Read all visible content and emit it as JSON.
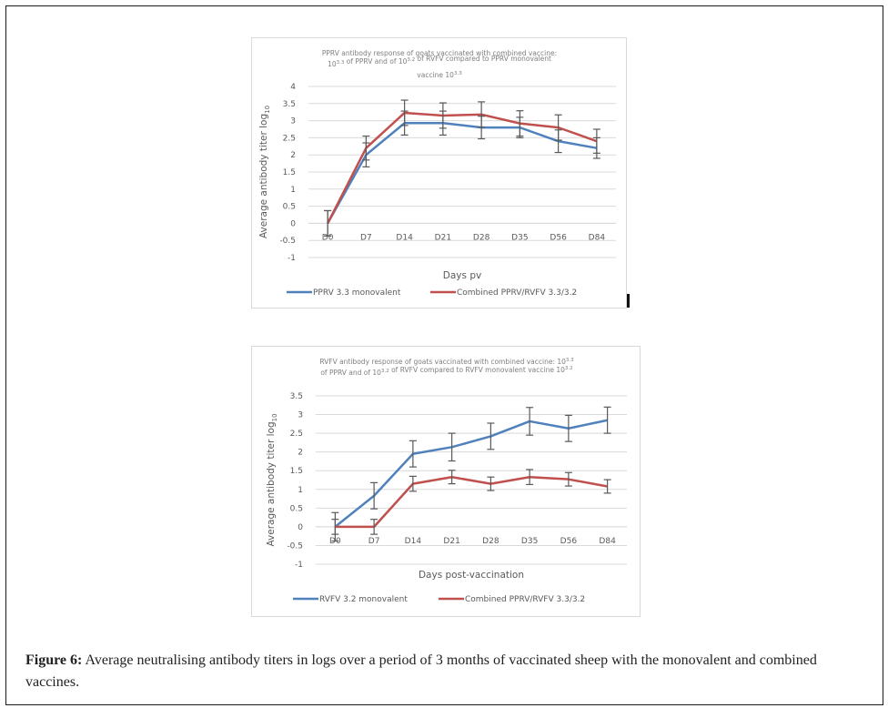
{
  "figure": {
    "caption_label": "Figure 6:",
    "caption_text": " Average neutralising antibody titers in logs over a period of 3 months of vaccinated sheep with the monovalent and combined vaccines."
  },
  "chart_data": [
    {
      "type": "line",
      "title_lines": [
        "PPRV antibody response of goats vaccinated with combined vaccine:",
        "10^3.3 of PPRV and of 10^3.2 of RVFV compared to PPRV monovalent",
        "vaccine 10^3.3"
      ],
      "xlabel": "Days pv",
      "ylabel": "Average antibody titer log10",
      "categories": [
        "D0",
        "D7",
        "D14",
        "D21",
        "D28",
        "D35",
        "D56",
        "D84"
      ],
      "ylim": [
        -1,
        4
      ],
      "yticks": [
        -1,
        -0.5,
        0,
        0.5,
        1,
        1.5,
        2,
        2.5,
        3,
        3.5,
        4
      ],
      "grid": true,
      "legend_position": "bottom",
      "series": [
        {
          "name": "PPRV 3.3 monovalent",
          "color": "#4f81bd",
          "values": [
            0,
            2.0,
            2.93,
            2.93,
            2.8,
            2.8,
            2.4,
            2.2
          ],
          "errors": [
            0.37,
            0.35,
            0.35,
            0.35,
            0.33,
            0.3,
            0.33,
            0.3
          ]
        },
        {
          "name": "Combined PPRV/RVFV 3.3/3.2",
          "color": "#c0504d",
          "values": [
            0,
            2.2,
            3.23,
            3.15,
            3.18,
            2.92,
            2.8,
            2.4
          ],
          "errors": [
            0.37,
            0.35,
            0.37,
            0.37,
            0.37,
            0.37,
            0.37,
            0.35
          ]
        }
      ]
    },
    {
      "type": "line",
      "title_lines": [
        "RVFV antibody response of goats vaccinated with combined vaccine: 10^3.3",
        "of PPRV and of 10^3.2 of RVFV compared to RVFV monovalent vaccine 10^3.2"
      ],
      "xlabel": "Days post-vaccination",
      "ylabel": "Average antibody titer log10",
      "categories": [
        "D0",
        "D7",
        "D14",
        "D21",
        "D28",
        "D35",
        "D56",
        "D84"
      ],
      "ylim": [
        -1,
        3.5
      ],
      "yticks": [
        -1,
        -0.5,
        0,
        0.5,
        1,
        1.5,
        2,
        2.5,
        3,
        3.5
      ],
      "grid": true,
      "legend_position": "bottom",
      "series": [
        {
          "name": "RVFV 3.2 monovalent",
          "color": "#4f81bd",
          "values": [
            0,
            0.83,
            1.95,
            2.13,
            2.42,
            2.82,
            2.63,
            2.85
          ],
          "errors": [
            0.38,
            0.35,
            0.35,
            0.37,
            0.35,
            0.37,
            0.35,
            0.35
          ]
        },
        {
          "name": "Combined PPRV/RVFV 3.3/3.2",
          "color": "#c0504d",
          "values": [
            0,
            0,
            1.15,
            1.33,
            1.15,
            1.33,
            1.27,
            1.08
          ],
          "errors": [
            0.2,
            0.2,
            0.2,
            0.18,
            0.18,
            0.2,
            0.18,
            0.18
          ]
        }
      ]
    }
  ]
}
